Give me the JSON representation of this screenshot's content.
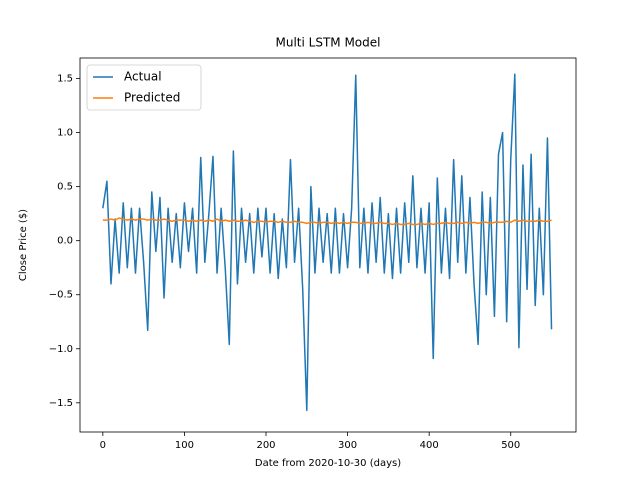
{
  "chart_data": {
    "type": "line",
    "title": "Multi LSTM Model",
    "x_label": "Date from 2020-10-30 (days)",
    "y_label": "Close Price ($)",
    "x": [
      0,
      5,
      10,
      15,
      20,
      25,
      30,
      35,
      40,
      45,
      50,
      55,
      60,
      65,
      70,
      75,
      80,
      85,
      90,
      95,
      100,
      105,
      110,
      115,
      120,
      125,
      130,
      135,
      140,
      145,
      150,
      155,
      160,
      165,
      170,
      175,
      180,
      185,
      190,
      195,
      200,
      205,
      210,
      215,
      220,
      225,
      230,
      235,
      240,
      245,
      250,
      255,
      260,
      265,
      270,
      275,
      280,
      285,
      290,
      295,
      300,
      305,
      310,
      315,
      320,
      325,
      330,
      335,
      340,
      345,
      350,
      355,
      360,
      365,
      370,
      375,
      380,
      385,
      390,
      395,
      400,
      405,
      410,
      415,
      420,
      425,
      430,
      435,
      440,
      445,
      450,
      455,
      460,
      465,
      470,
      475,
      480,
      485,
      490,
      495,
      500,
      505,
      510,
      515,
      520,
      525,
      530,
      535,
      540,
      545,
      550
    ],
    "series": [
      {
        "name": "Actual",
        "color": "#1f77b4",
        "values": [
          0.3,
          0.55,
          -0.4,
          0.2,
          -0.3,
          0.35,
          -0.25,
          0.3,
          -0.3,
          0.3,
          -0.2,
          -0.83,
          0.45,
          -0.1,
          0.4,
          -0.53,
          0.3,
          -0.2,
          0.25,
          -0.25,
          0.35,
          -0.1,
          0.3,
          -0.3,
          0.77,
          -0.2,
          0.25,
          0.78,
          -0.3,
          0.3,
          -0.25,
          -0.96,
          0.83,
          -0.4,
          0.3,
          -0.2,
          0.25,
          -0.3,
          0.3,
          -0.15,
          0.3,
          -0.3,
          0.25,
          -0.35,
          0.2,
          -0.25,
          0.75,
          -0.2,
          0.3,
          -0.45,
          -1.57,
          0.5,
          -0.3,
          0.3,
          -0.2,
          0.25,
          -0.3,
          0.3,
          -0.3,
          0.25,
          -0.25,
          0.3,
          1.53,
          -0.25,
          0.3,
          -0.3,
          0.35,
          -0.2,
          0.4,
          -0.3,
          0.25,
          -0.35,
          0.3,
          -0.3,
          0.35,
          -0.2,
          0.6,
          -0.25,
          0.3,
          -0.3,
          0.35,
          -1.09,
          0.58,
          -0.3,
          0.3,
          -0.35,
          0.75,
          -0.2,
          0.6,
          -0.3,
          0.4,
          -0.4,
          -0.96,
          0.45,
          -0.5,
          0.4,
          -0.7,
          0.8,
          1.0,
          -0.75,
          0.75,
          1.54,
          -0.99,
          0.7,
          -0.45,
          0.8,
          -0.6,
          0.3,
          -0.5,
          0.95,
          -0.82
        ]
      },
      {
        "name": "Predicted",
        "color": "#ff7f0e",
        "values": [
          0.19,
          0.19,
          0.2,
          0.19,
          0.21,
          0.2,
          0.19,
          0.2,
          0.19,
          0.2,
          0.2,
          0.19,
          0.2,
          0.19,
          0.19,
          0.2,
          0.19,
          0.18,
          0.19,
          0.19,
          0.19,
          0.18,
          0.19,
          0.18,
          0.19,
          0.18,
          0.19,
          0.18,
          0.2,
          0.18,
          0.19,
          0.18,
          0.19,
          0.18,
          0.18,
          0.19,
          0.18,
          0.17,
          0.18,
          0.18,
          0.17,
          0.18,
          0.18,
          0.17,
          0.18,
          0.17,
          0.17,
          0.18,
          0.17,
          0.17,
          0.16,
          0.17,
          0.17,
          0.16,
          0.17,
          0.17,
          0.16,
          0.17,
          0.16,
          0.17,
          0.16,
          0.17,
          0.17,
          0.16,
          0.16,
          0.17,
          0.16,
          0.16,
          0.17,
          0.16,
          0.16,
          0.15,
          0.16,
          0.15,
          0.15,
          0.16,
          0.15,
          0.15,
          0.16,
          0.15,
          0.16,
          0.15,
          0.16,
          0.16,
          0.17,
          0.16,
          0.16,
          0.17,
          0.16,
          0.17,
          0.16,
          0.17,
          0.16,
          0.17,
          0.17,
          0.16,
          0.17,
          0.17,
          0.17,
          0.18,
          0.17,
          0.19,
          0.18,
          0.19,
          0.18,
          0.18,
          0.18,
          0.19,
          0.18,
          0.18,
          0.19
        ]
      }
    ],
    "xlim": [
      -28,
      580
    ],
    "ylim": [
      -1.77,
      1.69
    ],
    "xticks": [
      0,
      100,
      200,
      300,
      400,
      500
    ],
    "yticks": [
      {
        "value": -1.5,
        "label": "−1.5"
      },
      {
        "value": -1.0,
        "label": "−1.0"
      },
      {
        "value": -0.5,
        "label": "−0.5"
      },
      {
        "value": 0.0,
        "label": "0.0"
      },
      0.5,
      {
        "value": 1.0,
        "label": "1.0"
      },
      1.5
    ],
    "legend": "upper left"
  }
}
